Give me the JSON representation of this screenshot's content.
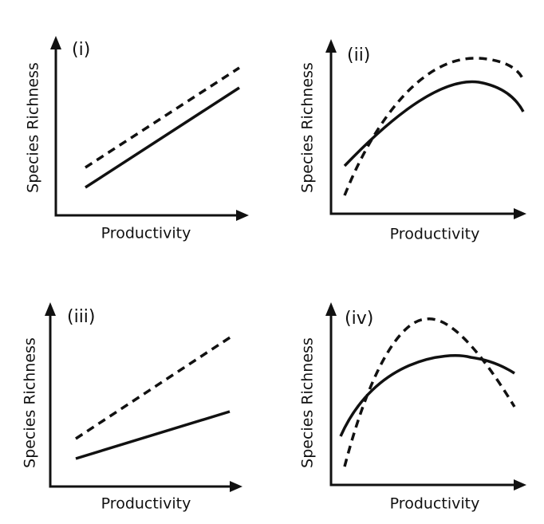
{
  "panels": [
    {
      "label": "(i)",
      "x_label": "Productivity",
      "y_label": "Species Richness"
    },
    {
      "label": "(ii)",
      "x_label": "Productivity",
      "y_label": "Species Richness"
    },
    {
      "label": "(iii)",
      "x_label": "Productivity",
      "y_label": "Species Richness"
    },
    {
      "label": "(iv)",
      "x_label": "Productivity",
      "y_label": "Species Richness"
    }
  ]
}
